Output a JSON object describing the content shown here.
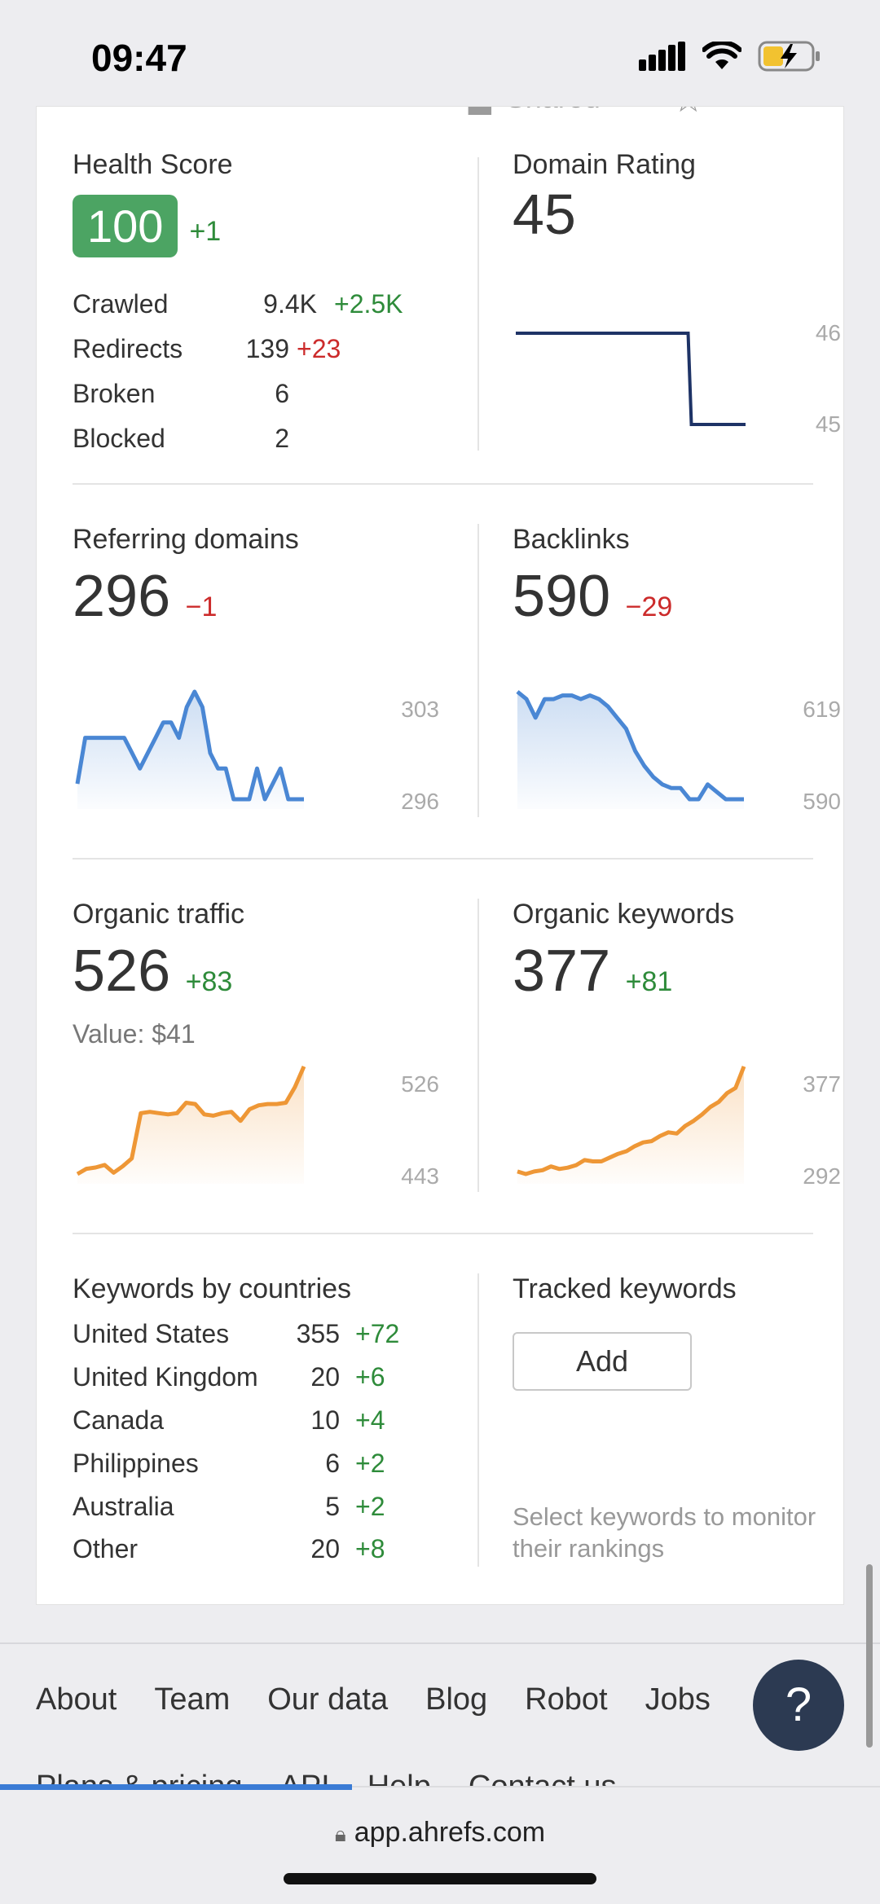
{
  "status_bar": {
    "time": "09:47"
  },
  "partial_header": {
    "shared_label": "Shared"
  },
  "health": {
    "title": "Health Score",
    "score": "100",
    "delta": "+1",
    "rows": [
      {
        "label": "Crawled",
        "value": "9.4K",
        "change": "+2.5K",
        "trend": "pos"
      },
      {
        "label": "Redirects",
        "value": "139",
        "change": "+23",
        "trend": "neg"
      },
      {
        "label": "Broken",
        "value": "6",
        "change": "",
        "trend": ""
      },
      {
        "label": "Blocked",
        "value": "2",
        "change": "",
        "trend": ""
      }
    ]
  },
  "domain_rating": {
    "title": "Domain Rating",
    "value": "45",
    "axis_max": "46",
    "axis_min": "45",
    "series": [
      46,
      46,
      46,
      46,
      46,
      46,
      46,
      46,
      46,
      46,
      45,
      45,
      45
    ]
  },
  "referring_domains": {
    "title": "Referring domains",
    "value": "296",
    "delta": "−1",
    "axis_max": "303",
    "axis_min": "296",
    "series": [
      297,
      300,
      300,
      300,
      300,
      300,
      300,
      299,
      298,
      299,
      300,
      301,
      301,
      300,
      302,
      303,
      302,
      299,
      298,
      298,
      296,
      296,
      296,
      298,
      296,
      297,
      298,
      296,
      296,
      296
    ]
  },
  "backlinks": {
    "title": "Backlinks",
    "value": "590",
    "delta": "−29",
    "axis_max": "619",
    "axis_min": "590",
    "series": [
      619,
      617,
      612,
      617,
      617,
      618,
      618,
      617,
      618,
      617,
      615,
      612,
      609,
      603,
      599,
      596,
      594,
      593,
      593,
      590,
      590,
      594,
      592,
      590,
      590,
      590
    ]
  },
  "organic_traffic": {
    "title": "Organic traffic",
    "value": "526",
    "delta": "+83",
    "sub_label": "Value: $41",
    "axis_max": "526",
    "axis_min": "443",
    "series": [
      443,
      447,
      448,
      450,
      444,
      449,
      455,
      490,
      491,
      490,
      489,
      490,
      498,
      497,
      489,
      488,
      490,
      491,
      484,
      493,
      496,
      497,
      497,
      498,
      510,
      526
    ]
  },
  "organic_keywords": {
    "title": "Organic keywords",
    "value": "377",
    "delta": "+81",
    "axis_max": "377",
    "axis_min": "292",
    "series": [
      294,
      292,
      294,
      295,
      298,
      296,
      297,
      299,
      303,
      302,
      302,
      305,
      308,
      310,
      314,
      317,
      318,
      322,
      325,
      324,
      330,
      334,
      339,
      345,
      349,
      356,
      360,
      377
    ]
  },
  "countries": {
    "title": "Keywords by countries",
    "rows": [
      {
        "name": "United States",
        "value": "355",
        "change": "+72"
      },
      {
        "name": "United Kingdom",
        "value": "20",
        "change": "+6"
      },
      {
        "name": "Canada",
        "value": "10",
        "change": "+4"
      },
      {
        "name": "Philippines",
        "value": "6",
        "change": "+2"
      },
      {
        "name": "Australia",
        "value": "5",
        "change": "+2"
      },
      {
        "name": "Other",
        "value": "20",
        "change": "+8"
      }
    ]
  },
  "tracked": {
    "title": "Tracked keywords",
    "add_label": "Add",
    "hint": "Select keywords to monitor their rankings"
  },
  "footer": {
    "links": [
      "About",
      "Team",
      "Our data",
      "Blog",
      "Robot",
      "Jobs"
    ],
    "links_row2": [
      "Plans & pricing",
      "API",
      "Help",
      "Contact us"
    ],
    "help_label": "?"
  },
  "browser": {
    "url": "app.ahrefs.com"
  },
  "colors": {
    "accent_blue": "#4a87d4",
    "accent_orange": "#ee9736",
    "dark_navy": "#1e3366",
    "positive": "#2e8b3a",
    "negative": "#cc2b2b",
    "health_green": "#4ca463"
  }
}
